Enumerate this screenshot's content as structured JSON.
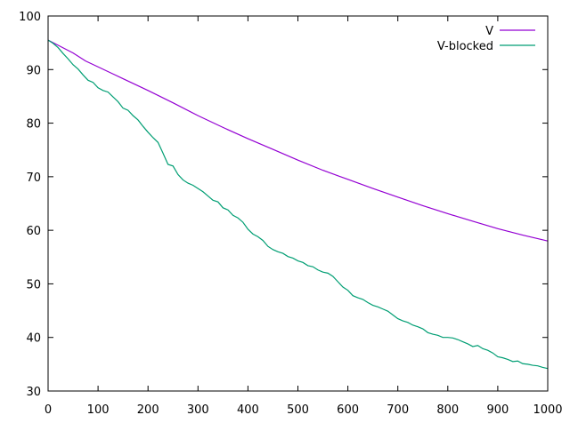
{
  "chart_data": {
    "type": "line",
    "title": "",
    "xlabel": "",
    "ylabel": "",
    "xlim": [
      0,
      1000
    ],
    "ylim": [
      30,
      100
    ],
    "xticks": [
      0,
      100,
      200,
      300,
      400,
      500,
      600,
      700,
      800,
      900,
      1000
    ],
    "yticks": [
      30,
      40,
      50,
      60,
      70,
      80,
      90,
      100
    ],
    "grid": false,
    "legend_position": "top-right",
    "series": [
      {
        "name": "V",
        "color": "#9400d3",
        "x": [
          0,
          25,
          50,
          75,
          100,
          150,
          200,
          250,
          300,
          350,
          400,
          450,
          500,
          550,
          600,
          650,
          700,
          750,
          800,
          850,
          900,
          950,
          1000
        ],
        "y": [
          95.5,
          94.3,
          93.1,
          91.6,
          90.5,
          88.3,
          86.1,
          83.8,
          81.4,
          79.2,
          77.1,
          75.1,
          73.1,
          71.2,
          69.5,
          67.8,
          66.2,
          64.6,
          63.1,
          61.7,
          60.3,
          59.1,
          58.0
        ]
      },
      {
        "name": "V-blocked",
        "color": "#009e73",
        "x": [
          0,
          10,
          20,
          30,
          40,
          50,
          60,
          70,
          80,
          90,
          100,
          110,
          120,
          130,
          140,
          150,
          160,
          170,
          180,
          190,
          200,
          210,
          220,
          230,
          240,
          250,
          260,
          270,
          280,
          290,
          300,
          310,
          320,
          330,
          340,
          350,
          360,
          370,
          380,
          390,
          400,
          410,
          420,
          430,
          440,
          450,
          460,
          470,
          480,
          490,
          500,
          510,
          520,
          530,
          540,
          550,
          560,
          570,
          580,
          590,
          600,
          610,
          620,
          630,
          640,
          650,
          660,
          670,
          680,
          690,
          700,
          710,
          720,
          730,
          740,
          750,
          760,
          770,
          780,
          790,
          800,
          810,
          820,
          830,
          840,
          850,
          860,
          870,
          880,
          890,
          900,
          910,
          920,
          930,
          940,
          950,
          960,
          970,
          980,
          990,
          1000
        ],
        "y": [
          95.5,
          94.9,
          94.1,
          93.0,
          92.0,
          90.9,
          90.1,
          89.0,
          88.0,
          87.6,
          86.6,
          86.1,
          85.8,
          84.9,
          84.0,
          82.8,
          82.4,
          81.4,
          80.6,
          79.4,
          78.3,
          77.3,
          76.4,
          74.4,
          72.3,
          72.0,
          70.4,
          69.4,
          68.8,
          68.4,
          67.8,
          67.2,
          66.4,
          65.6,
          65.3,
          64.2,
          63.8,
          62.8,
          62.3,
          61.5,
          60.2,
          59.3,
          58.8,
          58.1,
          57.0,
          56.4,
          56.0,
          55.7,
          55.1,
          54.8,
          54.3,
          54.0,
          53.4,
          53.2,
          52.6,
          52.2,
          52.0,
          51.4,
          50.4,
          49.4,
          48.8,
          47.8,
          47.4,
          47.1,
          46.5,
          46.0,
          45.7,
          45.3,
          44.9,
          44.2,
          43.5,
          43.1,
          42.8,
          42.3,
          42.0,
          41.6,
          40.9,
          40.6,
          40.4,
          40.0,
          40.0,
          39.9,
          39.6,
          39.2,
          38.8,
          38.3,
          38.5,
          37.9,
          37.6,
          37.1,
          36.4,
          36.2,
          35.9,
          35.5,
          35.6,
          35.1,
          35.0,
          34.8,
          34.7,
          34.4,
          34.2
        ]
      }
    ]
  }
}
